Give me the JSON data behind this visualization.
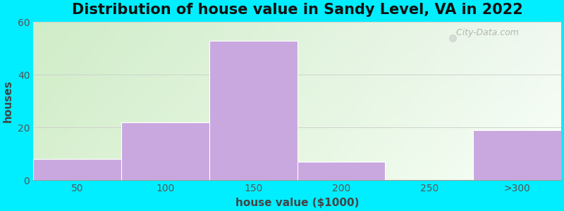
{
  "title": "Distribution of house value in Sandy Level, VA in 2022",
  "xlabel": "house value ($1000)",
  "ylabel": "houses",
  "bar_labels": [
    "50",
    "100",
    "150",
    "200",
    "250",
    ">300"
  ],
  "bar_values": [
    8,
    22,
    53,
    7,
    0,
    19
  ],
  "bar_color": "#c9a8e0",
  "bar_edgecolor": "#ffffff",
  "ylim": [
    0,
    60
  ],
  "yticks": [
    0,
    20,
    40,
    60
  ],
  "bg_outer": "#00eeff",
  "bg_inner_left": "#dff0d8",
  "bg_inner_right": "#f0f8f0",
  "title_fontsize": 15,
  "axis_fontsize": 11,
  "tick_fontsize": 10,
  "watermark": "  City-Data.com"
}
